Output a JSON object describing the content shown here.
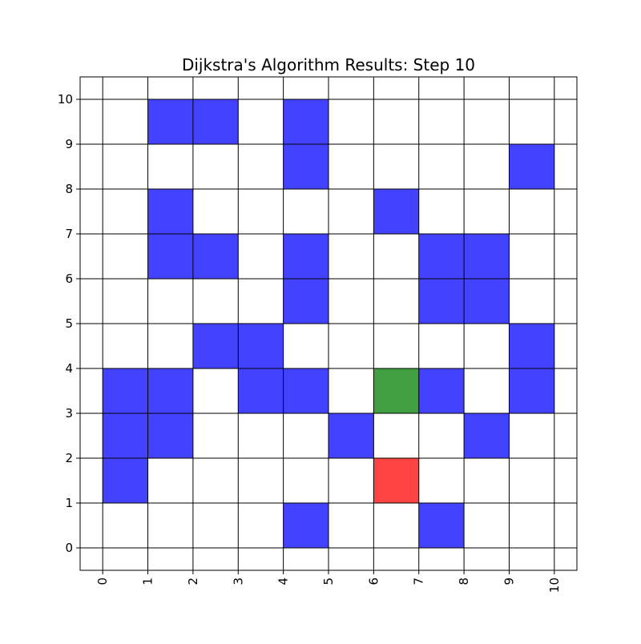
{
  "chart_data": {
    "type": "heatmap",
    "title": "Dijkstra's Algorithm Results: Step 10",
    "xlabel": "",
    "ylabel": "",
    "xlim": [
      -0.5,
      10.5
    ],
    "ylim": [
      -0.5,
      10.5
    ],
    "x_ticks": [
      "0",
      "1",
      "2",
      "3",
      "4",
      "5",
      "6",
      "7",
      "8",
      "9",
      "10"
    ],
    "y_ticks": [
      "0",
      "1",
      "2",
      "3",
      "4",
      "5",
      "6",
      "7",
      "8",
      "9",
      "10"
    ],
    "x_tick_rotation": 90,
    "grid": true,
    "cell_span": 1,
    "cell_colors": {
      "wall": "#4242ff",
      "start": "#42a042",
      "goal": "#ff4242",
      "grid_line": "#000000",
      "background": "#ffffff"
    },
    "walls": [
      [
        4,
        0
      ],
      [
        7,
        0
      ],
      [
        0,
        1
      ],
      [
        0,
        2
      ],
      [
        1,
        2
      ],
      [
        5,
        2
      ],
      [
        8,
        2
      ],
      [
        0,
        3
      ],
      [
        1,
        3
      ],
      [
        3,
        3
      ],
      [
        4,
        3
      ],
      [
        7,
        3
      ],
      [
        9,
        3
      ],
      [
        2,
        4
      ],
      [
        3,
        4
      ],
      [
        9,
        4
      ],
      [
        4,
        5
      ],
      [
        7,
        5
      ],
      [
        8,
        5
      ],
      [
        1,
        6
      ],
      [
        2,
        6
      ],
      [
        4,
        6
      ],
      [
        7,
        6
      ],
      [
        8,
        6
      ],
      [
        1,
        7
      ],
      [
        6,
        7
      ],
      [
        4,
        8
      ],
      [
        9,
        8
      ],
      [
        1,
        9
      ],
      [
        2,
        9
      ],
      [
        4,
        9
      ]
    ],
    "start": [
      6,
      3
    ],
    "goal": [
      6,
      1
    ]
  }
}
